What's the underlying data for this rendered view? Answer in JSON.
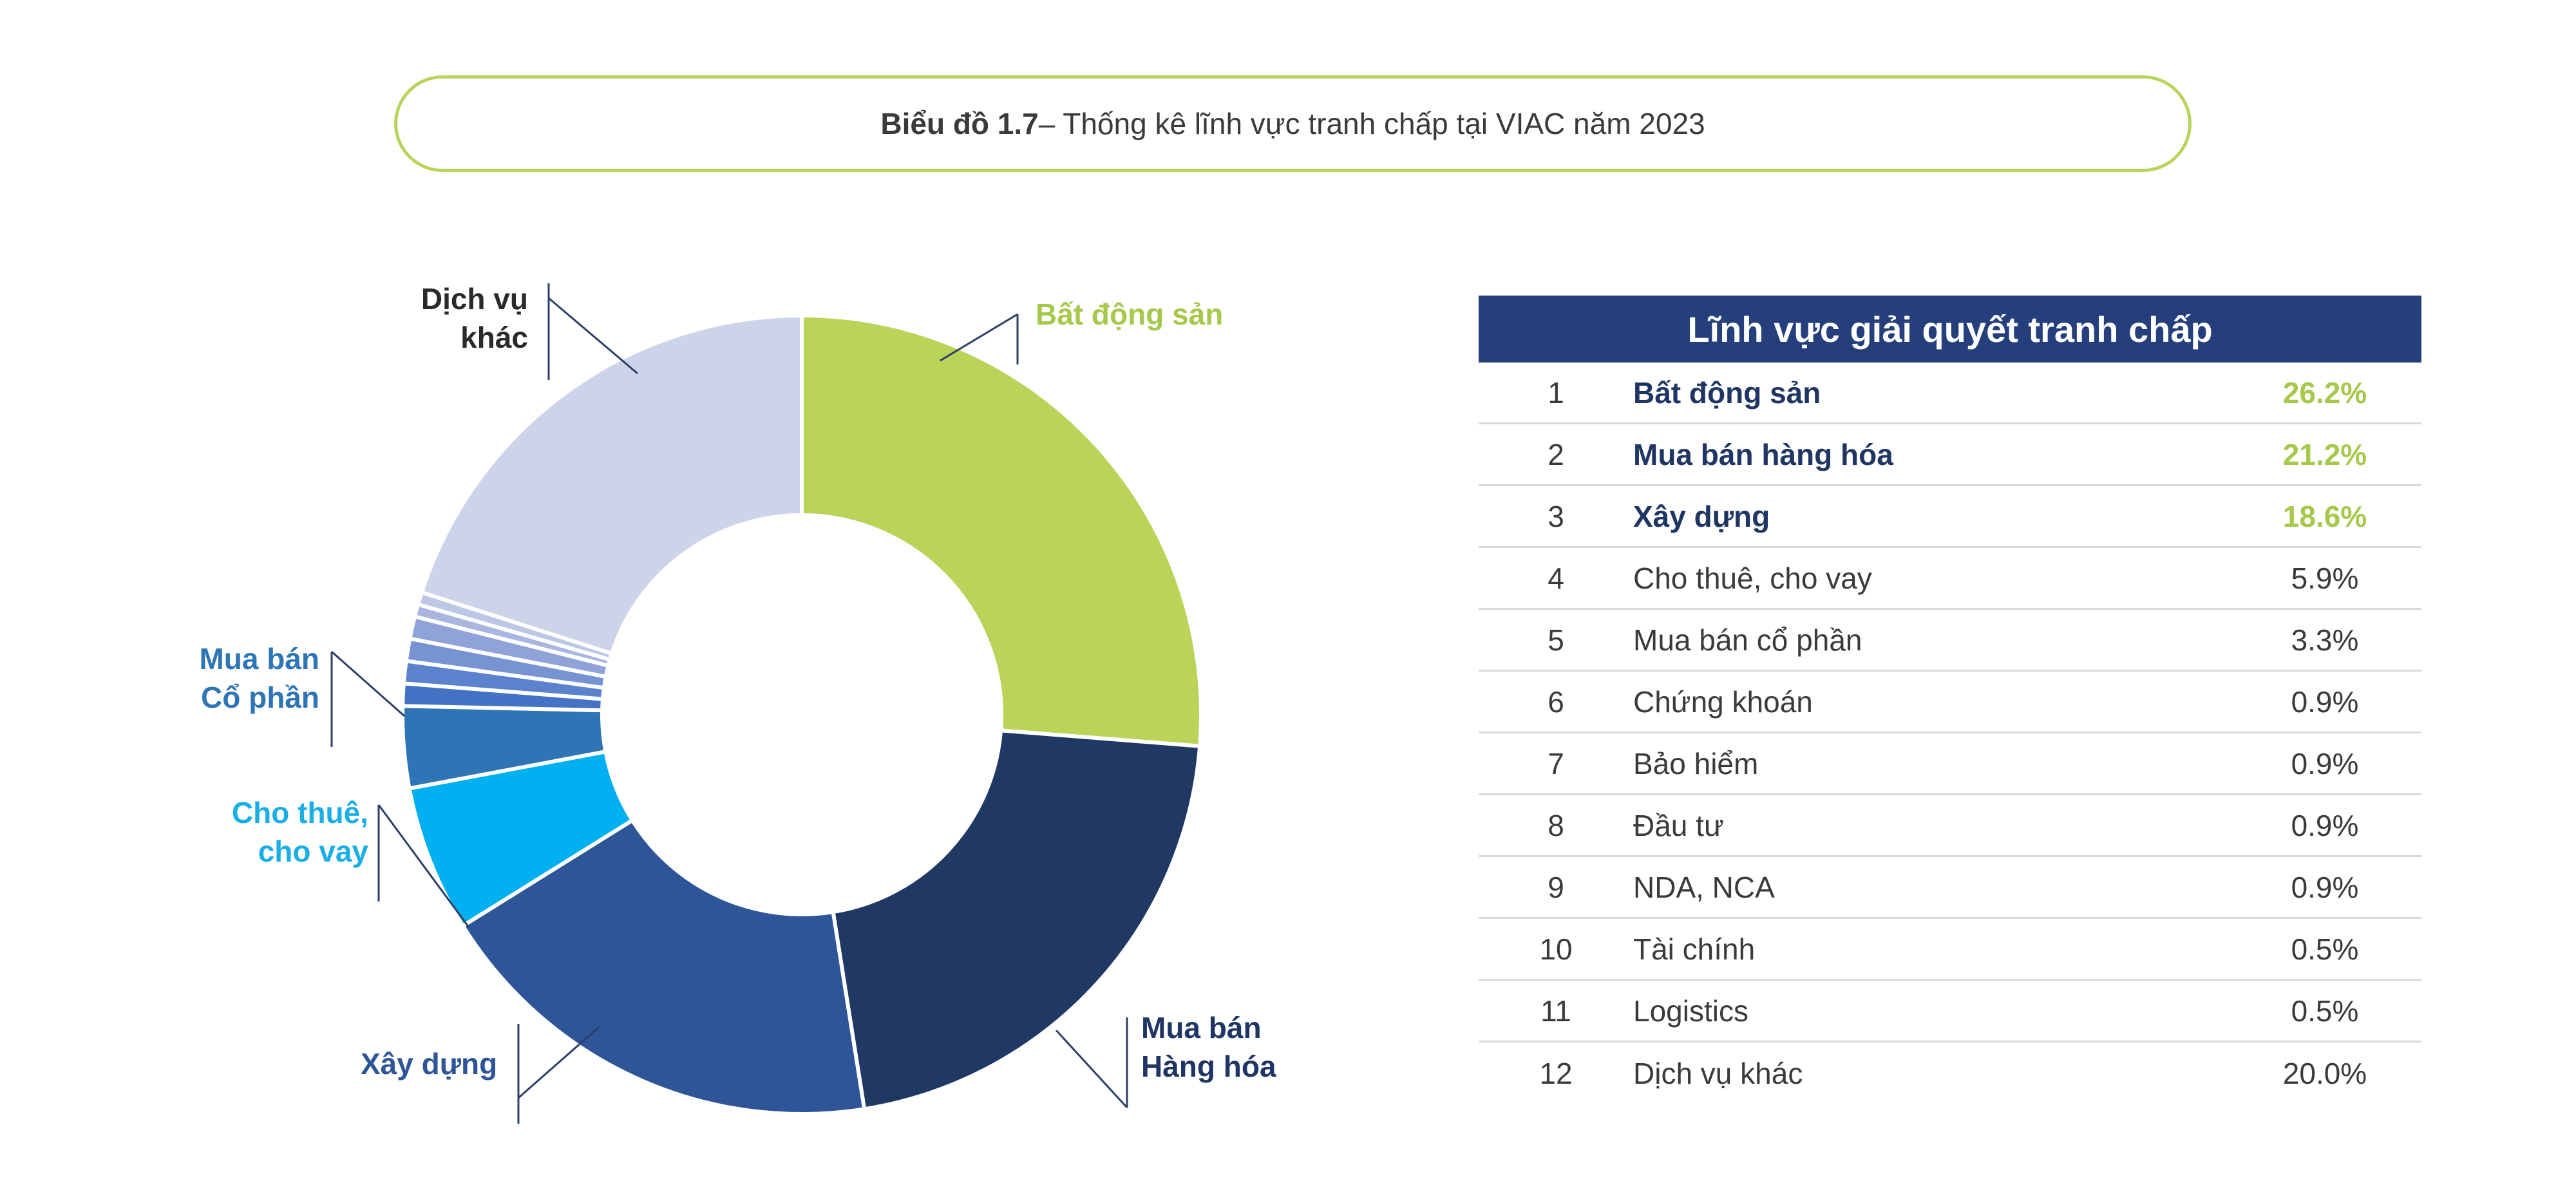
{
  "title": {
    "prefix": "Biểu đồ 1.7",
    "rest": " – Thống kê lĩnh vực tranh chấp tại VIAC năm 2023"
  },
  "chart_data": {
    "type": "pie",
    "donut": true,
    "labels": [
      "Bất động sản",
      "Mua bán hàng hóa",
      "Xây dựng",
      "Cho thuê, cho vay",
      "Mua bán cổ phần",
      "Chứng khoán",
      "Bảo hiểm",
      "Đầu tư",
      "NDA, NCA",
      "Tài chính",
      "Logistics",
      "Dịch vụ khác"
    ],
    "values": [
      26.2,
      21.2,
      18.6,
      5.9,
      3.3,
      0.9,
      0.9,
      0.9,
      0.9,
      0.5,
      0.5,
      20.0
    ],
    "colors": [
      "#bad45a",
      "#203864",
      "#2e5597",
      "#00b0f0",
      "#2e75b6",
      "#4472c4",
      "#5b82cc",
      "#7893d2",
      "#8fa3d8",
      "#a9b6df",
      "#bcc6e5",
      "#cdd4ea"
    ],
    "callouts": [
      {
        "text": "Bất động sản",
        "color": "#a6c84b"
      },
      {
        "text": "Mua bán\nHàng hóa",
        "color": "#1f3563"
      },
      {
        "text": "Xây dựng",
        "color": "#2e5597"
      },
      {
        "text": "Cho thuê,\ncho vay",
        "color": "#1aaee6"
      },
      {
        "text": "Mua bán\nCổ phần",
        "color": "#2e75b6"
      },
      {
        "text": "Dịch vụ\nkhác",
        "color": "#2a2a2a"
      }
    ]
  },
  "table": {
    "header": "Lĩnh vực giải quyết tranh chấp",
    "rows": [
      {
        "num": "1",
        "name": "Bất động sản",
        "pct": "26.2%"
      },
      {
        "num": "2",
        "name": "Mua bán hàng hóa",
        "pct": "21.2%"
      },
      {
        "num": "3",
        "name": "Xây dựng",
        "pct": "18.6%"
      },
      {
        "num": "4",
        "name": "Cho thuê, cho vay",
        "pct": "5.9%"
      },
      {
        "num": "5",
        "name": "Mua bán cổ phần",
        "pct": "3.3%"
      },
      {
        "num": "6",
        "name": "Chứng khoán",
        "pct": "0.9%"
      },
      {
        "num": "7",
        "name": "Bảo hiểm",
        "pct": "0.9%"
      },
      {
        "num": "8",
        "name": "Đầu tư",
        "pct": "0.9%"
      },
      {
        "num": "9",
        "name": "NDA, NCA",
        "pct": "0.9%"
      },
      {
        "num": "10",
        "name": "Tài chính",
        "pct": "0.5%"
      },
      {
        "num": "11",
        "name": "Logistics",
        "pct": "0.5%"
      },
      {
        "num": "12",
        "name": "Dịch vụ khác",
        "pct": "20.0%"
      }
    ]
  }
}
